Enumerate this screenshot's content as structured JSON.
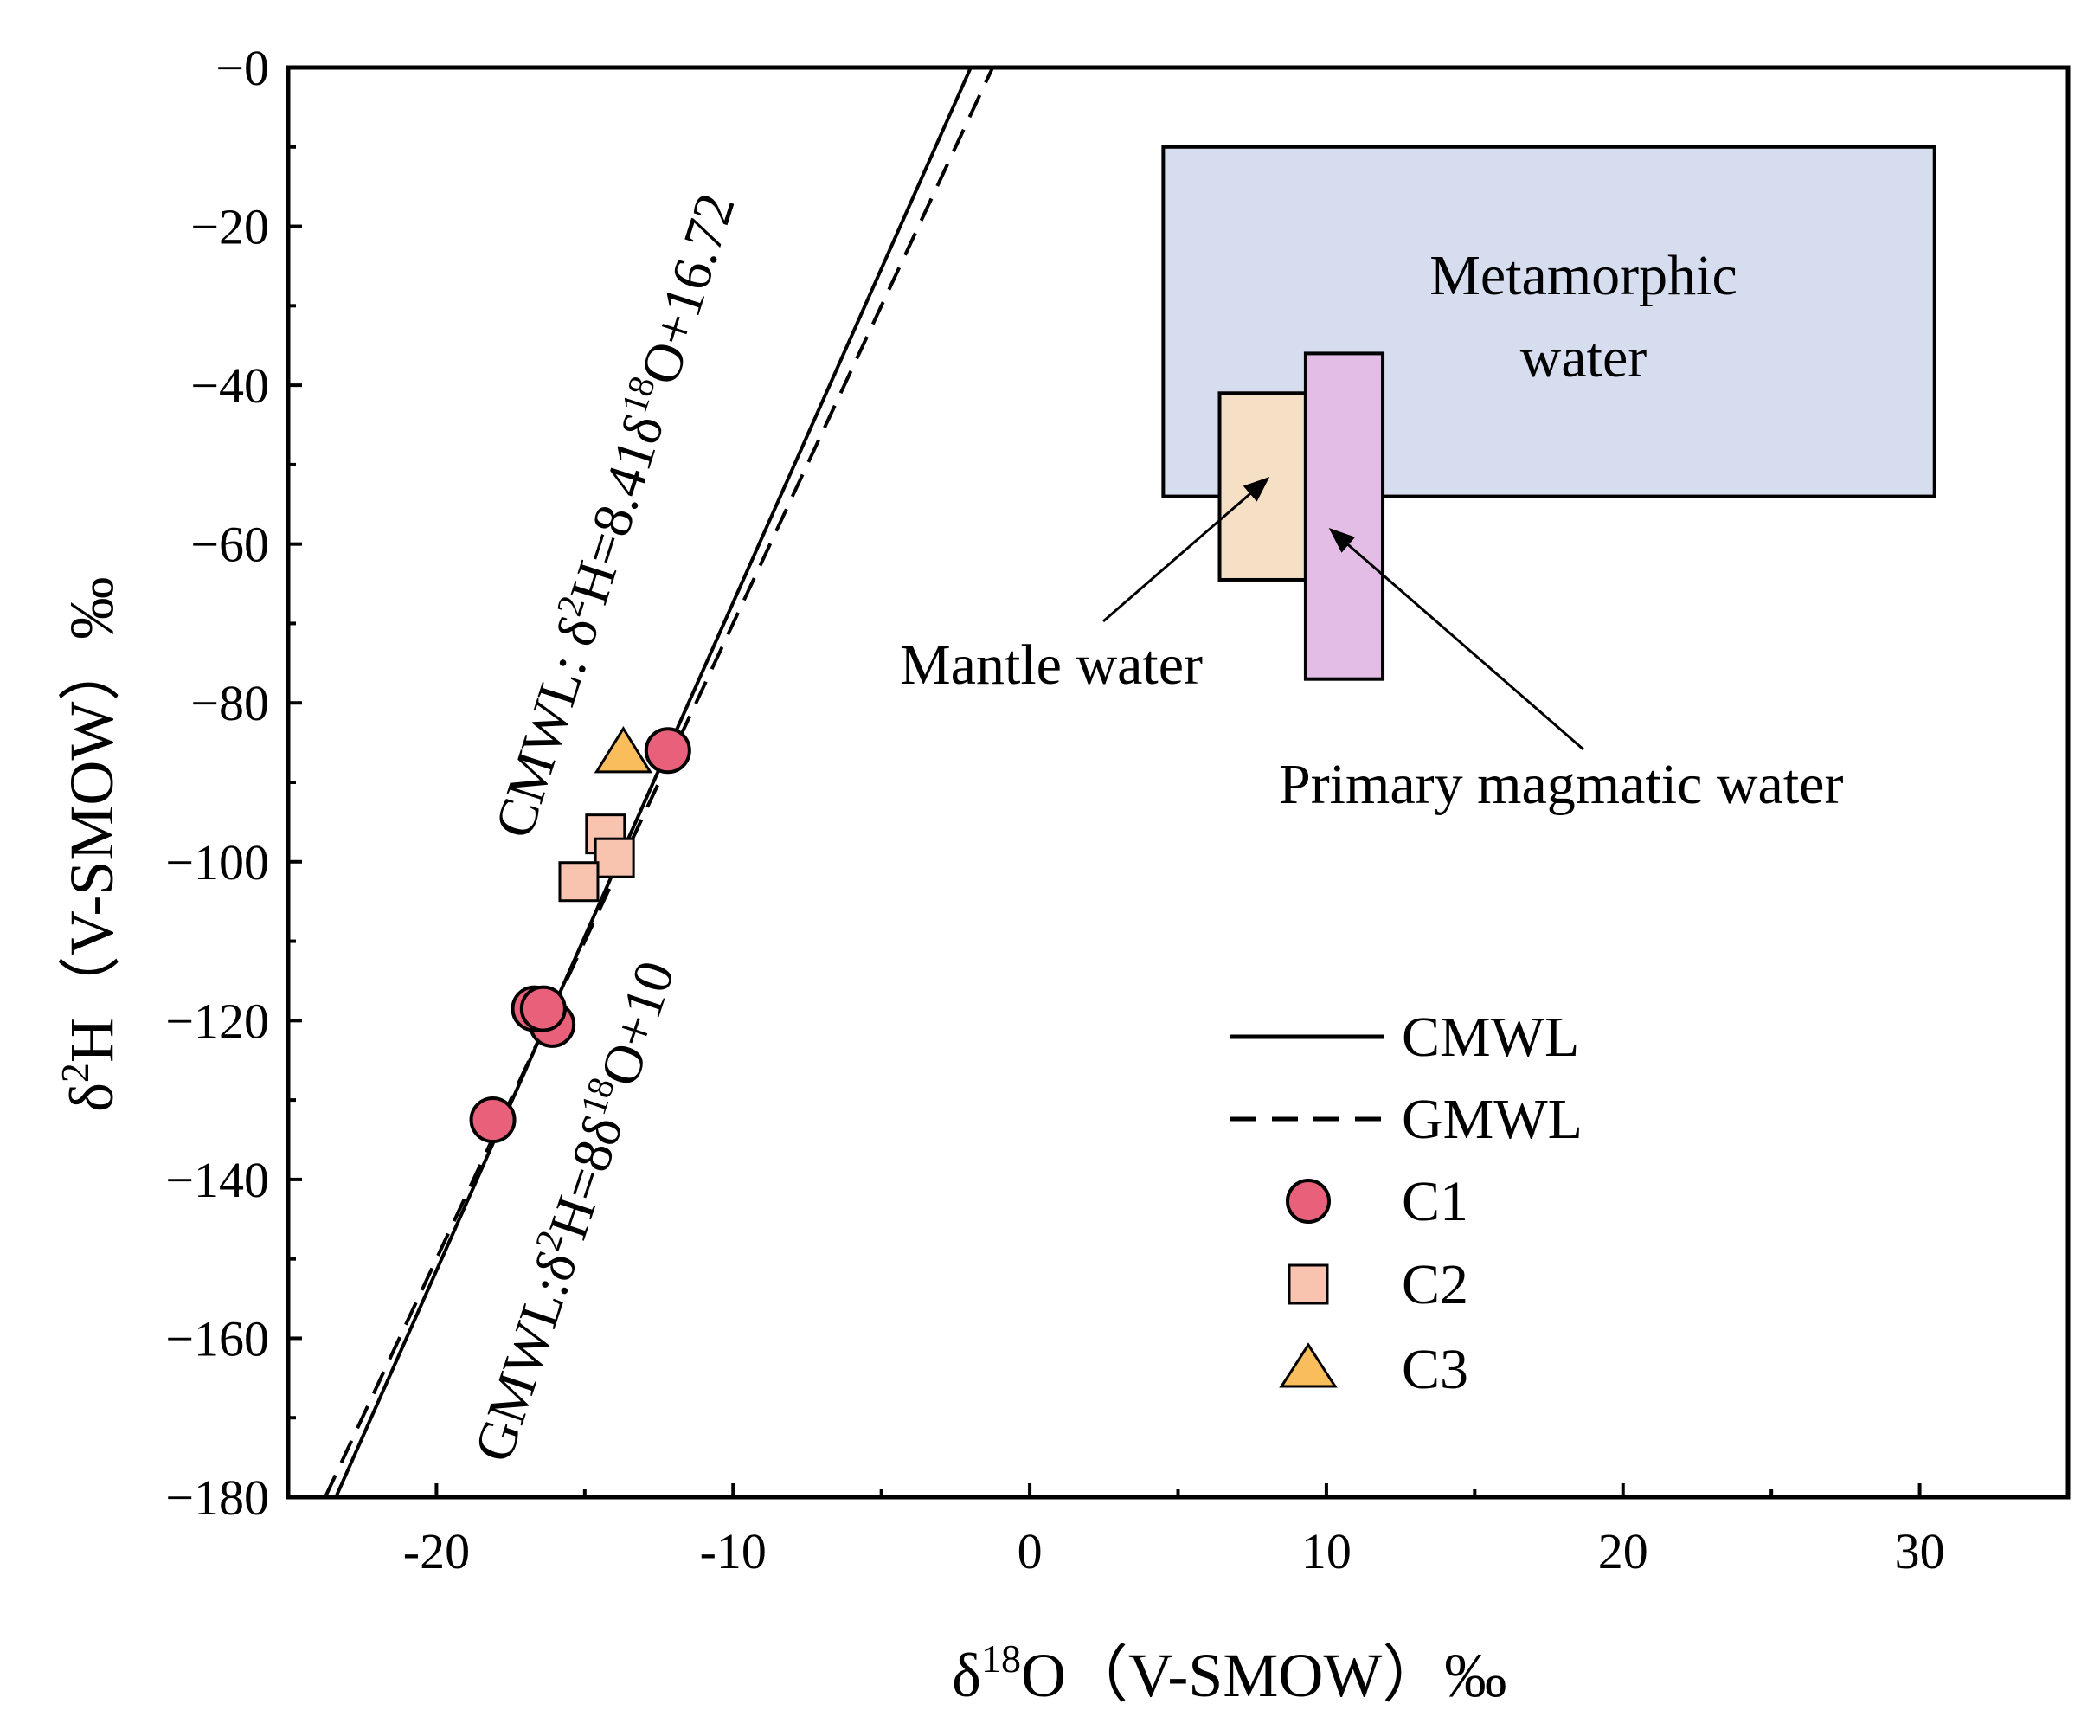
{
  "chart_data": {
    "type": "scatter",
    "xlabel": {
      "main": "δ",
      "sup": "18",
      "rest": "O（V-SMOW）‰"
    },
    "ylabel": {
      "main": "δ",
      "sup": "2",
      "rest": "H（V-SMOW）‰"
    },
    "xlim": [
      -25,
      35
    ],
    "ylim": [
      -180,
      0
    ],
    "x_ticks": [
      -20,
      -10,
      0,
      10,
      20,
      30
    ],
    "x_tick_labels": [
      "-20",
      "-10",
      "0",
      "10",
      "20",
      "30"
    ],
    "y_ticks": [
      0,
      -20,
      -40,
      -60,
      -80,
      -100,
      -120,
      -140,
      -160,
      -180
    ],
    "y_tick_labels": [
      "−0",
      "−20",
      "−40",
      "−60",
      "−80",
      "−100",
      "−120",
      "−140",
      "−160",
      "−180"
    ],
    "lines": [
      {
        "name": "CMWL",
        "slope": 8.41,
        "intercept": 16.72,
        "style": "solid"
      },
      {
        "name": "GMWL",
        "slope": 8,
        "intercept": 10,
        "style": "dashed"
      }
    ],
    "equations": {
      "cmwl": {
        "a": "CMWL: δ",
        "b": "2",
        "c": "H=8.41δ",
        "d": "18",
        "e": "O+16.72"
      },
      "gmwl": {
        "a": "GMWL:δ",
        "b": "2",
        "c": "H=8δ",
        "d": "18",
        "e": "O+10"
      }
    },
    "series": [
      {
        "name": "C1",
        "marker": "circle",
        "color": "#e8607a",
        "points": [
          [
            -12.2,
            -86
          ],
          [
            -16.1,
            -120.5
          ],
          [
            -16.7,
            -118.5
          ],
          [
            -16.4,
            -118.5
          ],
          [
            -18.1,
            -132.5
          ]
        ]
      },
      {
        "name": "C2",
        "marker": "square",
        "color": "#f8c4b0",
        "points": [
          [
            -14.3,
            -96.5
          ],
          [
            -14.0,
            -99.5
          ],
          [
            -15.2,
            -102.5
          ]
        ]
      },
      {
        "name": "C3",
        "marker": "triangle",
        "color": "#f9bd5c",
        "points": [
          [
            -13.7,
            -86.5
          ]
        ]
      }
    ],
    "regions": [
      {
        "name": "metamorphic",
        "label_lines": [
          "Metamorphic",
          "water"
        ],
        "x": [
          4.5,
          30.5
        ],
        "y": [
          -10,
          -54
        ],
        "color": "#d6ddef"
      },
      {
        "name": "mantle",
        "label": "Mantle water",
        "x": [
          6.4,
          9.3
        ],
        "y": [
          -41,
          -64.5
        ],
        "color": "#f5dfc5"
      },
      {
        "name": "primary-magmatic",
        "label": "Primary magmatic water",
        "x": [
          9.3,
          11.9
        ],
        "y": [
          -36,
          -77
        ],
        "color": "#e4bde6"
      }
    ],
    "legend": {
      "position": "bottom-right",
      "entries": [
        "CMWL",
        "GMWL",
        "C1",
        "C2",
        "C3"
      ]
    }
  }
}
